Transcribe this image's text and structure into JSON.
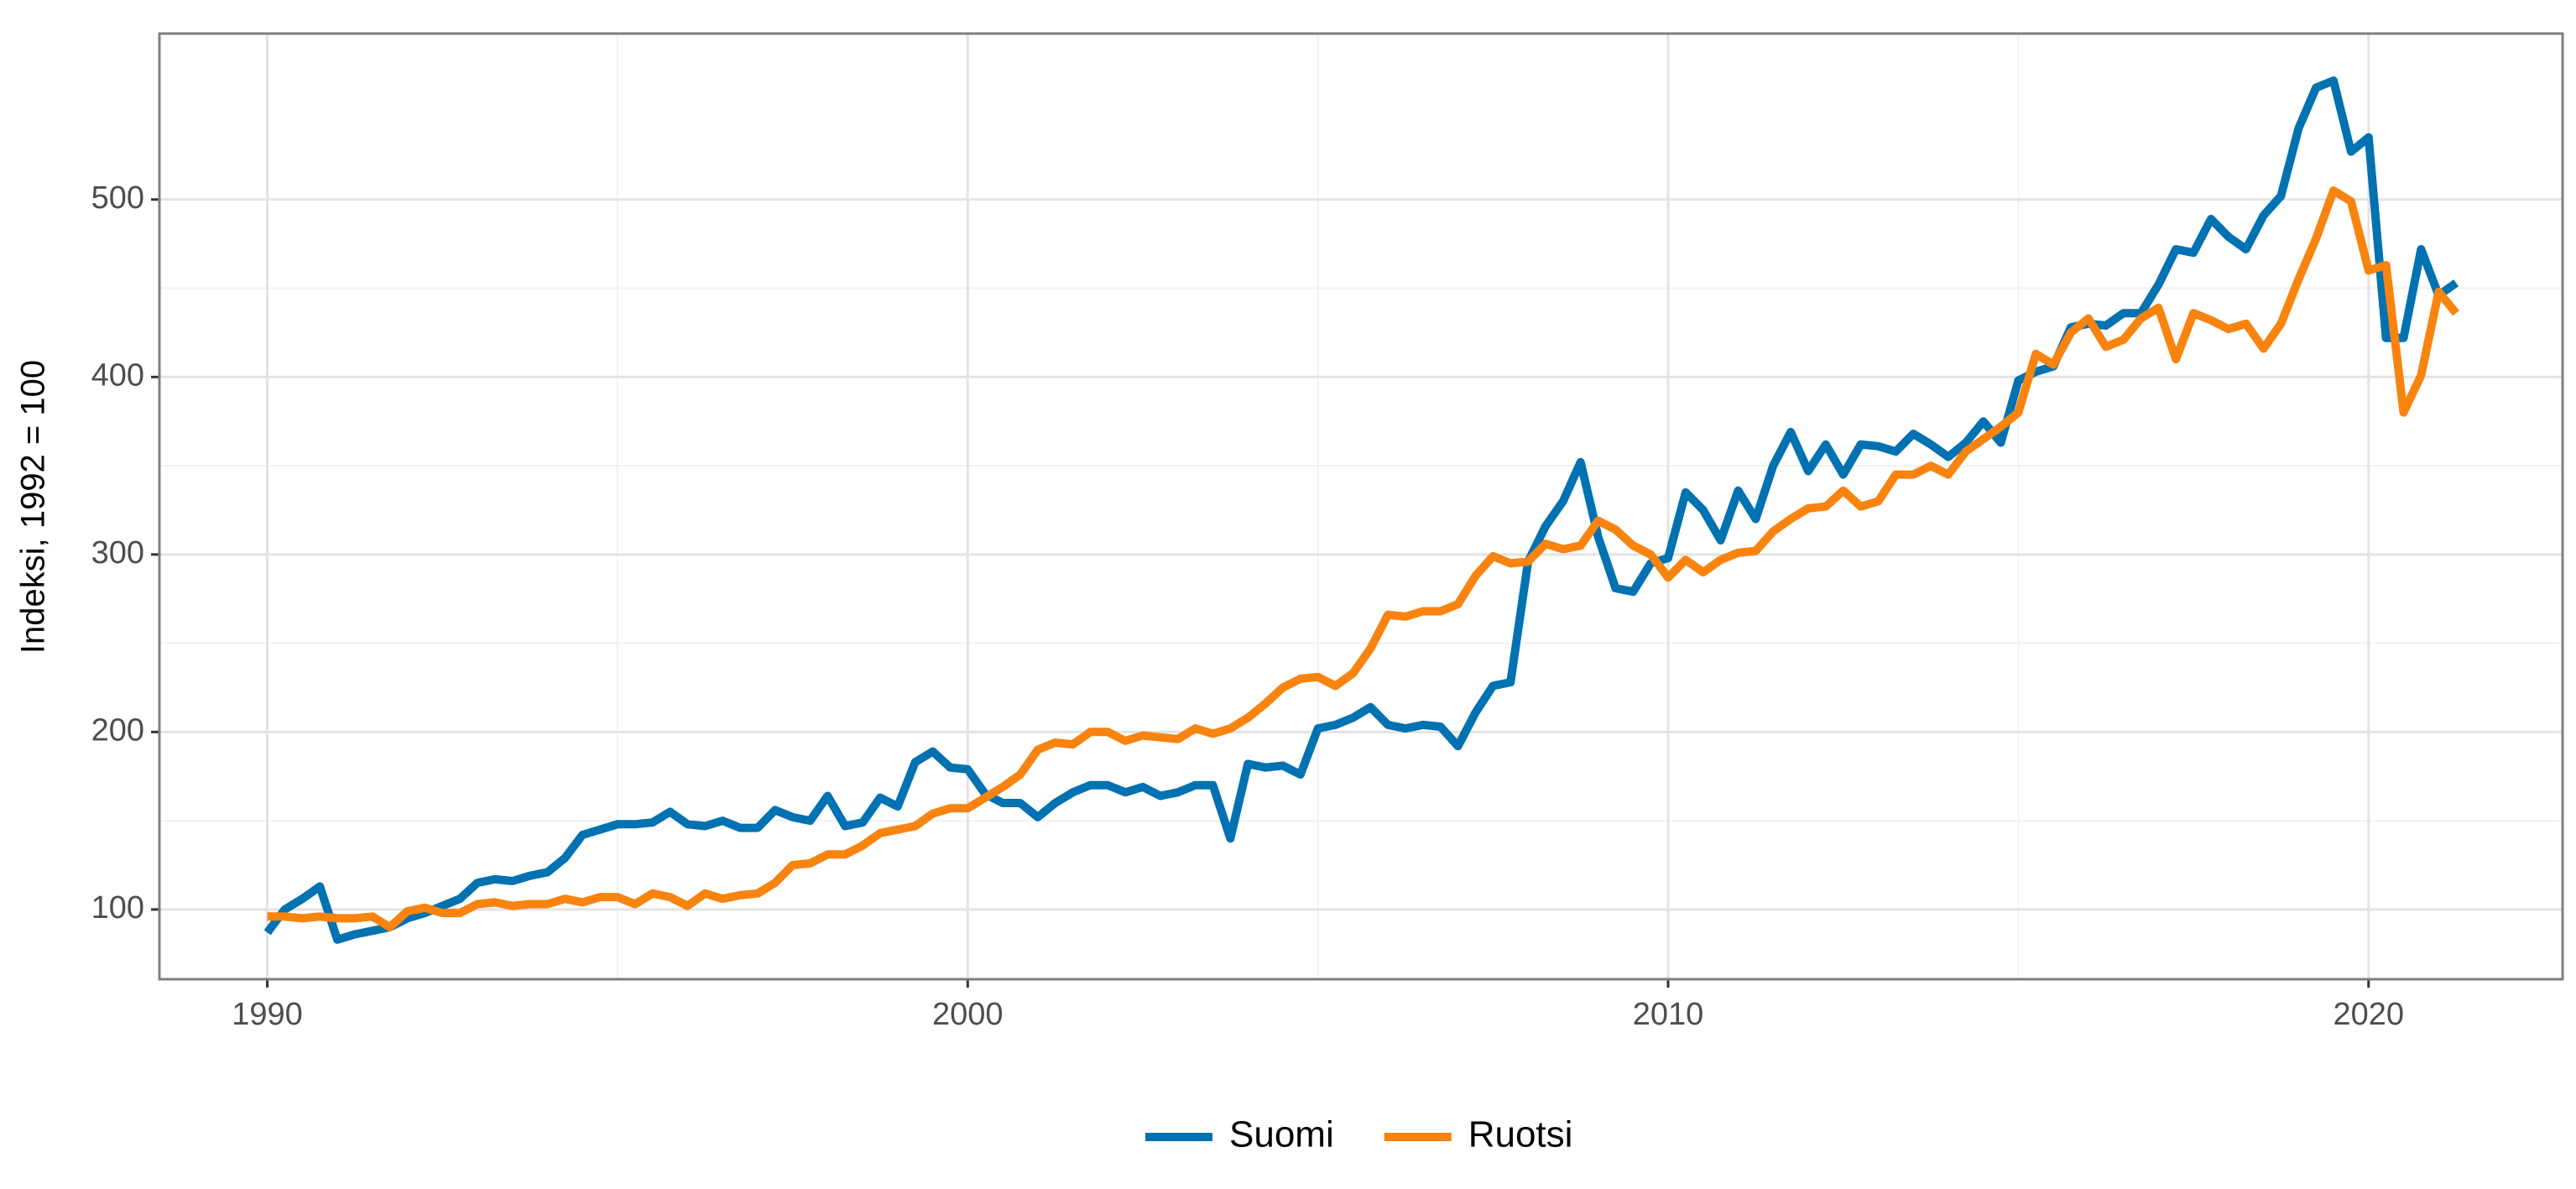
{
  "chart_data": {
    "type": "line",
    "y_label": "Indeksi, 1992 = 100",
    "x": [
      1990,
      1990.25,
      1990.5,
      1990.75,
      1991,
      1991.25,
      1991.5,
      1991.75,
      1992,
      1992.25,
      1992.5,
      1992.75,
      1993,
      1993.25,
      1993.5,
      1993.75,
      1994,
      1994.25,
      1994.5,
      1994.75,
      1995,
      1995.25,
      1995.5,
      1995.75,
      1996,
      1996.25,
      1996.5,
      1996.75,
      1997,
      1997.25,
      1997.5,
      1997.75,
      1998,
      1998.25,
      1998.5,
      1998.75,
      1999,
      1999.25,
      1999.5,
      1999.75,
      2000,
      2000.25,
      2000.5,
      2000.75,
      2001,
      2001.25,
      2001.5,
      2001.75,
      2002,
      2002.25,
      2002.5,
      2002.75,
      2003,
      2003.25,
      2003.5,
      2003.75,
      2004,
      2004.25,
      2004.5,
      2004.75,
      2005,
      2005.25,
      2005.5,
      2005.75,
      2006,
      2006.25,
      2006.5,
      2006.75,
      2007,
      2007.25,
      2007.5,
      2007.75,
      2008,
      2008.25,
      2008.5,
      2008.75,
      2009,
      2009.25,
      2009.5,
      2009.75,
      2010,
      2010.25,
      2010.5,
      2010.75,
      2011,
      2011.25,
      2011.5,
      2011.75,
      2012,
      2012.25,
      2012.5,
      2012.75,
      2013,
      2013.25,
      2013.5,
      2013.75,
      2014,
      2014.25,
      2014.5,
      2014.75,
      2015,
      2015.25,
      2015.5,
      2015.75,
      2016,
      2016.25,
      2016.5,
      2016.75,
      2017,
      2017.25,
      2017.5,
      2017.75,
      2018,
      2018.25,
      2018.5,
      2018.75,
      2019,
      2019.25,
      2019.5,
      2019.75,
      2020,
      2020.25,
      2020.5,
      2020.75,
      2021,
      2021.25
    ],
    "series": [
      {
        "name": "Suomi",
        "color": "#0072B2",
        "values": [
          87,
          100,
          106,
          113,
          83,
          86,
          88,
          90,
          95,
          98,
          102,
          106,
          115,
          117,
          116,
          119,
          121,
          129,
          142,
          145,
          148,
          148,
          149,
          155,
          148,
          147,
          150,
          146,
          146,
          156,
          152,
          150,
          164,
          147,
          149,
          163,
          158,
          183,
          189,
          180,
          179,
          165,
          160,
          160,
          152,
          160,
          166,
          170,
          170,
          166,
          169,
          164,
          166,
          170,
          170,
          140,
          182,
          180,
          181,
          176,
          202,
          204,
          208,
          214,
          204,
          202,
          204,
          203,
          192,
          211,
          226,
          228,
          296,
          316,
          330,
          352,
          310,
          281,
          279,
          295,
          298,
          335,
          325,
          308,
          336,
          320,
          350,
          369,
          347,
          362,
          345,
          362,
          361,
          358,
          368,
          362,
          355,
          363,
          375,
          363,
          398,
          403,
          406,
          428,
          430,
          429,
          436,
          436,
          452,
          472,
          470,
          489,
          479,
          472,
          491,
          502,
          540,
          563,
          567,
          527,
          535,
          422,
          422,
          472,
          446,
          453
        ]
      },
      {
        "name": "Ruotsi",
        "color": "#F8830F",
        "values": [
          96,
          96,
          95,
          96,
          95,
          95,
          96,
          90,
          99,
          101,
          98,
          98,
          103,
          104,
          102,
          103,
          103,
          106,
          104,
          107,
          107,
          103,
          109,
          107,
          102,
          109,
          106,
          108,
          109,
          115,
          125,
          126,
          131,
          131,
          136,
          143,
          145,
          147,
          154,
          157,
          157,
          163,
          169,
          176,
          190,
          194,
          193,
          200,
          200,
          195,
          198,
          197,
          196,
          202,
          199,
          202,
          208,
          216,
          225,
          230,
          231,
          226,
          233,
          247,
          266,
          265,
          268,
          268,
          272,
          288,
          299,
          295,
          296,
          306,
          303,
          305,
          319,
          314,
          305,
          300,
          287,
          297,
          290,
          297,
          301,
          302,
          313,
          320,
          326,
          327,
          336,
          327,
          330,
          345,
          345,
          350,
          345,
          358,
          365,
          372,
          380,
          413,
          407,
          425,
          433,
          417,
          421,
          433,
          439,
          410,
          436,
          432,
          427,
          430,
          416,
          430,
          455,
          478,
          505,
          499,
          460,
          463,
          380,
          401,
          448,
          436
        ]
      }
    ],
    "xlim": [
      1988.46,
      2022.77
    ],
    "xticks": [
      1990,
      2000,
      2010,
      2020
    ],
    "ylim": [
      60.7,
      593.5
    ],
    "yticks": [
      100,
      200,
      300,
      400,
      500
    ],
    "grid": true,
    "legend": "bottom"
  }
}
